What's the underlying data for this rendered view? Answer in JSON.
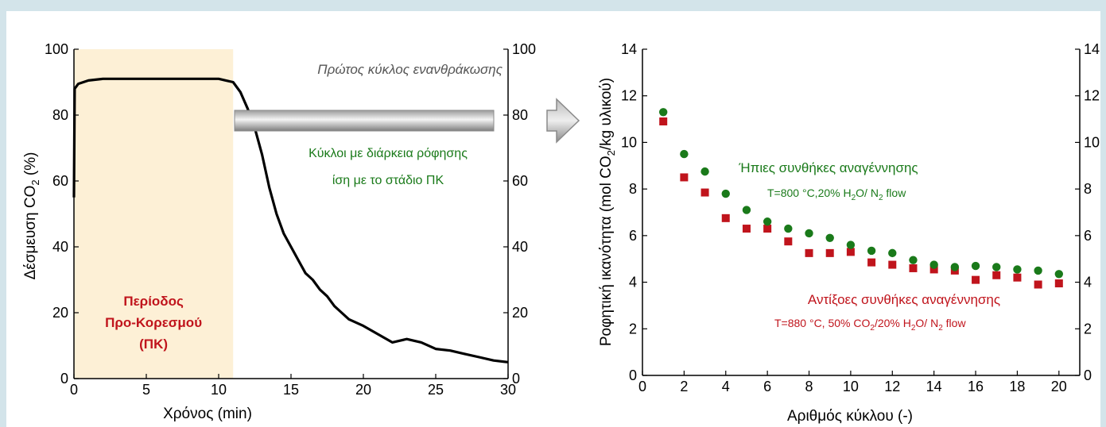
{
  "colors": {
    "page_background": "#d3e4ea",
    "panel_background": "#ffffff",
    "shade": "#fdf0d6",
    "curve": "#000000",
    "green": "#1a7a1a",
    "red": "#c0141c",
    "arrow": "#9a9a9a"
  },
  "chart_data": [
    {
      "type": "line",
      "xlabel": "Χρόνος (min)",
      "ylabel_main": "Δέσμευση CO",
      "ylabel_sub": "2",
      "ylabel_tail": " (%)",
      "xlim": [
        0,
        30
      ],
      "ylim": [
        0,
        100
      ],
      "x_ticks": [
        "0",
        "5",
        "10",
        "15",
        "20",
        "25",
        "30"
      ],
      "y_ticks": [
        "0",
        "20",
        "40",
        "60",
        "80",
        "100"
      ],
      "y2_ticks": [
        "0",
        "20",
        "40",
        "60",
        "80",
        "100"
      ],
      "grid": false,
      "shaded_region": {
        "x": [
          0,
          11
        ],
        "label_lines": [
          "Περίοδος",
          "Προ-Κορεσμού",
          "(ΠΚ)"
        ]
      },
      "annotations": {
        "top_right": "Πρώτος κύκλος ενανθράκωσης",
        "cycle_line1": "Κύκλοι με διάρκεια ρόφησης",
        "cycle_line2": "ίση με το στάδιο ΠΚ"
      },
      "series": [
        {
          "x": [
            0,
            0.05,
            0.3,
            1,
            2,
            3,
            4,
            5,
            6,
            7,
            8,
            9,
            10,
            10.5,
            11,
            11.5,
            12,
            12.5,
            13,
            13.5,
            14,
            14.5,
            15,
            15.5,
            16,
            16.5,
            17,
            17.5,
            18,
            18.5,
            19,
            19.5,
            20,
            21,
            22,
            22.5,
            23,
            24,
            25,
            26,
            27,
            28,
            29,
            30
          ],
          "y": [
            55,
            88,
            89.5,
            90.5,
            91,
            91,
            91,
            91,
            91,
            91,
            91,
            91,
            91,
            90.5,
            90,
            87,
            82,
            76,
            68,
            58,
            50,
            44,
            40,
            36,
            32,
            30,
            27,
            25,
            22,
            20,
            18,
            17,
            16,
            13.5,
            11,
            11.5,
            12,
            11,
            9,
            8.5,
            7.5,
            6.5,
            5.5,
            5
          ]
        }
      ]
    },
    {
      "type": "scatter",
      "xlabel": "Αριθμός κύκλου (-)",
      "ylabel_main": "Ροφητική ικανότητα (mol CO",
      "ylabel_sub": "2",
      "ylabel_tail": "/kg υλικού)",
      "xlim": [
        0,
        21
      ],
      "ylim": [
        0,
        14
      ],
      "x_ticks": [
        "0",
        "2",
        "4",
        "6",
        "8",
        "10",
        "12",
        "14",
        "16",
        "18",
        "20"
      ],
      "y_ticks": [
        "0",
        "2",
        "4",
        "6",
        "8",
        "10",
        "12",
        "14"
      ],
      "y2_ticks": [
        "0",
        "2",
        "4",
        "6",
        "8",
        "10",
        "12",
        "14"
      ],
      "grid": false,
      "series": [
        {
          "name": "Ήπιες συνθήκες αναγέννησης",
          "condition_parts": [
            "T=800 °C,20% H",
            "2",
            "O/ N",
            "2",
            " flow"
          ],
          "marker": "circle",
          "x": [
            1,
            2,
            3,
            4,
            5,
            6,
            7,
            8,
            9,
            10,
            11,
            12,
            13,
            14,
            15,
            16,
            17,
            18,
            19,
            20
          ],
          "y": [
            11.3,
            9.5,
            8.75,
            7.8,
            7.1,
            6.6,
            6.3,
            6.1,
            5.9,
            5.6,
            5.35,
            5.25,
            4.95,
            4.75,
            4.65,
            4.7,
            4.65,
            4.55,
            4.5,
            4.35
          ]
        },
        {
          "name": "Αντίξοες συνθήκες αναγέννησης",
          "condition_parts": [
            "T=880 °C, 50% CO",
            "2",
            "/20% H",
            "2",
            "O/ N",
            "2",
            " flow"
          ],
          "marker": "square",
          "x": [
            1,
            2,
            3,
            4,
            5,
            6,
            7,
            8,
            9,
            10,
            11,
            12,
            13,
            14,
            15,
            16,
            17,
            18,
            19,
            20
          ],
          "y": [
            10.9,
            8.5,
            7.85,
            6.75,
            6.3,
            6.3,
            5.75,
            5.25,
            5.25,
            5.3,
            4.85,
            4.75,
            4.6,
            4.55,
            4.5,
            4.1,
            4.3,
            4.2,
            3.9,
            3.95
          ]
        }
      ]
    }
  ]
}
